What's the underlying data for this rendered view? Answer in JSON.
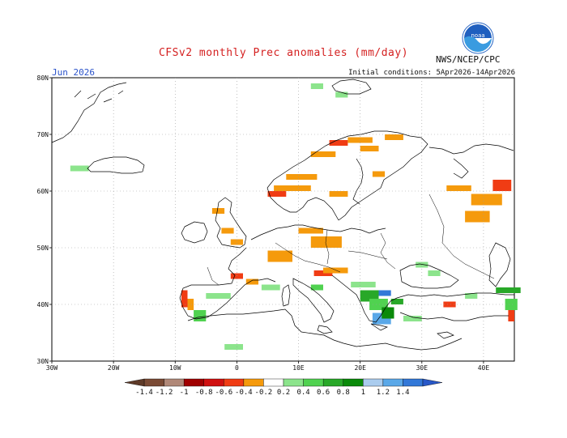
{
  "title": "CFSv2 monthly Prec anomalies (mm/day)",
  "org_label": "NWS/NCEP/CPC",
  "logo_text": "noaa",
  "month_label": "Jun 2026",
  "initial_conditions": "Initial conditions: 5Apr2026-14Apr2026",
  "lat_labels": [
    "80N",
    "70N",
    "60N",
    "50N",
    "40N",
    "30N"
  ],
  "lon_labels": [
    "30W",
    "20W",
    "10W",
    "0",
    "10E",
    "20E",
    "30E",
    "40E"
  ],
  "colorbar": {
    "labels": [
      "-1.4",
      "-1.2",
      "-1",
      "-0.8",
      "-0.6",
      "-0.4",
      "-0.2",
      "0.2",
      "0.4",
      "0.6",
      "0.8",
      "1",
      "1.2",
      "1.4"
    ],
    "colors": [
      "#7a4a34",
      "#b08878",
      "#a00000",
      "#d01010",
      "#f03c14",
      "#f59a0c",
      "#ffffff",
      "#8ce48c",
      "#50d250",
      "#28a828",
      "#0a8a0a",
      "#aaccee",
      "#5aa8e8",
      "#3278d8"
    ]
  },
  "anomaly_cells": [
    {
      "lon": -27.0,
      "lat": 64.5,
      "w": 3,
      "h": 1,
      "color": "#8ce48c"
    },
    {
      "lon": -4.0,
      "lat": 57.0,
      "w": 2,
      "h": 1,
      "color": "#f59a0c"
    },
    {
      "lon": -2.5,
      "lat": 53.5,
      "w": 2,
      "h": 1,
      "color": "#f59a0c"
    },
    {
      "lon": -1.0,
      "lat": 51.5,
      "w": 2,
      "h": 1,
      "color": "#f59a0c"
    },
    {
      "lon": 6.0,
      "lat": 61.0,
      "w": 6,
      "h": 1,
      "color": "#f59a0c"
    },
    {
      "lon": 5.0,
      "lat": 60.0,
      "w": 3,
      "h": 1,
      "color": "#f03c14"
    },
    {
      "lon": 8.0,
      "lat": 63.0,
      "w": 5,
      "h": 1,
      "color": "#f59a0c"
    },
    {
      "lon": 12.0,
      "lat": 67.0,
      "w": 4,
      "h": 1,
      "color": "#f59a0c"
    },
    {
      "lon": 15.0,
      "lat": 69.0,
      "w": 3,
      "h": 1,
      "color": "#f03c14"
    },
    {
      "lon": 18.0,
      "lat": 69.5,
      "w": 4,
      "h": 1,
      "color": "#f59a0c"
    },
    {
      "lon": 20.0,
      "lat": 68.0,
      "w": 3,
      "h": 1,
      "color": "#f59a0c"
    },
    {
      "lon": 24.0,
      "lat": 70.0,
      "w": 3,
      "h": 1,
      "color": "#f59a0c"
    },
    {
      "lon": 15.0,
      "lat": 60.0,
      "w": 3,
      "h": 1,
      "color": "#f59a0c"
    },
    {
      "lon": 22.0,
      "lat": 63.5,
      "w": 2,
      "h": 1,
      "color": "#f59a0c"
    },
    {
      "lon": 34.0,
      "lat": 61.0,
      "w": 4,
      "h": 1,
      "color": "#f59a0c"
    },
    {
      "lon": 38.0,
      "lat": 59.5,
      "w": 5,
      "h": 2,
      "color": "#f59a0c"
    },
    {
      "lon": 41.5,
      "lat": 62.0,
      "w": 3,
      "h": 2,
      "color": "#f03c14"
    },
    {
      "lon": 37.0,
      "lat": 56.5,
      "w": 4,
      "h": 2,
      "color": "#f59a0c"
    },
    {
      "lon": 10.0,
      "lat": 53.5,
      "w": 4,
      "h": 1,
      "color": "#f59a0c"
    },
    {
      "lon": 12.0,
      "lat": 52.0,
      "w": 5,
      "h": 2,
      "color": "#f59a0c"
    },
    {
      "lon": 5.0,
      "lat": 49.5,
      "w": 4,
      "h": 2,
      "color": "#f59a0c"
    },
    {
      "lon": -1.0,
      "lat": 45.5,
      "w": 2,
      "h": 1,
      "color": "#f03c14"
    },
    {
      "lon": 1.5,
      "lat": 44.5,
      "w": 2,
      "h": 1,
      "color": "#f59a0c"
    },
    {
      "lon": 12.5,
      "lat": 46.0,
      "w": 3,
      "h": 1,
      "color": "#f03c14"
    },
    {
      "lon": 14.0,
      "lat": 46.5,
      "w": 4,
      "h": 1,
      "color": "#f59a0c"
    },
    {
      "lon": -9.0,
      "lat": 42.5,
      "w": 1,
      "h": 3,
      "color": "#f03c14"
    },
    {
      "lon": -8.0,
      "lat": 41.0,
      "w": 1,
      "h": 2,
      "color": "#f59a0c"
    },
    {
      "lon": -5.0,
      "lat": 42.0,
      "w": 4,
      "h": 1,
      "color": "#8ce48c"
    },
    {
      "lon": -7.0,
      "lat": 39.0,
      "w": 2,
      "h": 2,
      "color": "#50d250"
    },
    {
      "lon": 4.0,
      "lat": 43.5,
      "w": 3,
      "h": 1,
      "color": "#8ce48c"
    },
    {
      "lon": 12.0,
      "lat": 43.5,
      "w": 2,
      "h": 1,
      "color": "#50d250"
    },
    {
      "lon": 18.5,
      "lat": 44.0,
      "w": 4,
      "h": 1,
      "color": "#8ce48c"
    },
    {
      "lon": 20.0,
      "lat": 42.5,
      "w": 3,
      "h": 2,
      "color": "#28a828"
    },
    {
      "lon": 21.5,
      "lat": 41.0,
      "w": 3,
      "h": 2,
      "color": "#50d250"
    },
    {
      "lon": 23.0,
      "lat": 42.5,
      "w": 2,
      "h": 1,
      "color": "#3278d8"
    },
    {
      "lon": 22.0,
      "lat": 38.5,
      "w": 3,
      "h": 2,
      "color": "#5aa8e8"
    },
    {
      "lon": 23.5,
      "lat": 39.5,
      "w": 2,
      "h": 2,
      "color": "#0a8a0a"
    },
    {
      "lon": 25.0,
      "lat": 41.0,
      "w": 2,
      "h": 1,
      "color": "#28a828"
    },
    {
      "lon": 27.0,
      "lat": 38.0,
      "w": 3,
      "h": 1,
      "color": "#8ce48c"
    },
    {
      "lon": 33.5,
      "lat": 40.5,
      "w": 2,
      "h": 1,
      "color": "#f03c14"
    },
    {
      "lon": 37.0,
      "lat": 42.0,
      "w": 2,
      "h": 1,
      "color": "#8ce48c"
    },
    {
      "lon": 42.0,
      "lat": 43.0,
      "w": 4,
      "h": 1,
      "color": "#28a828"
    },
    {
      "lon": 43.5,
      "lat": 41.0,
      "w": 2,
      "h": 2,
      "color": "#50d250"
    },
    {
      "lon": 44.0,
      "lat": 39.0,
      "w": 1,
      "h": 2,
      "color": "#f03c14"
    },
    {
      "lon": 31.0,
      "lat": 46.0,
      "w": 2,
      "h": 1,
      "color": "#8ce48c"
    },
    {
      "lon": 29.0,
      "lat": 47.5,
      "w": 2,
      "h": 1,
      "color": "#8ce48c"
    },
    {
      "lon": -2.0,
      "lat": 33.0,
      "w": 3,
      "h": 1,
      "color": "#8ce48c"
    },
    {
      "lon": 12.0,
      "lat": 79.0,
      "w": 2,
      "h": 1,
      "color": "#8ce48c"
    },
    {
      "lon": 16.0,
      "lat": 77.5,
      "w": 2,
      "h": 1,
      "color": "#8ce48c"
    }
  ]
}
